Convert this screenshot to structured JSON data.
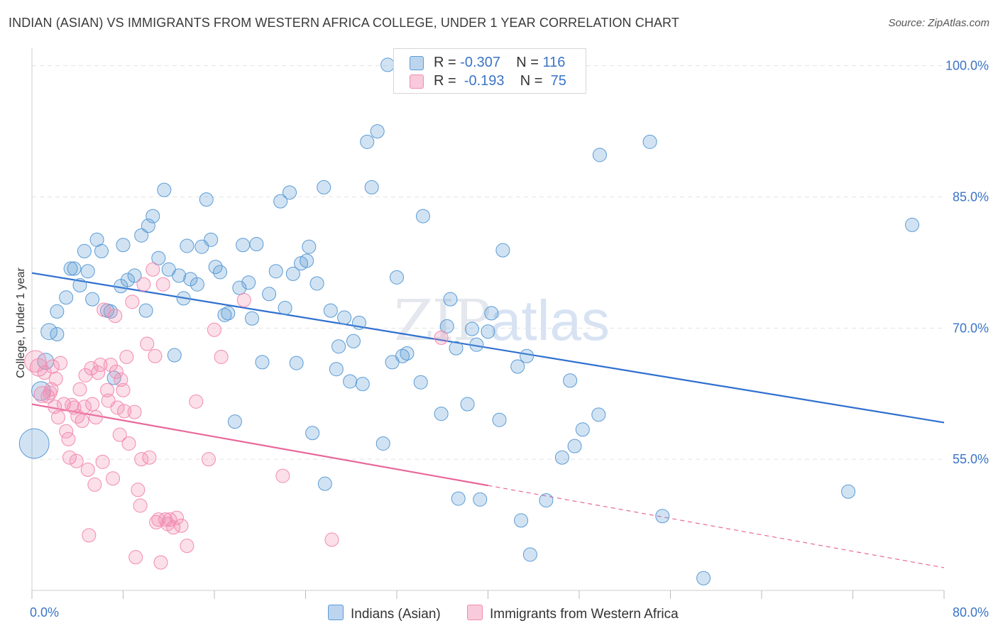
{
  "header": {
    "title": "INDIAN (ASIAN) VS IMMIGRANTS FROM WESTERN AFRICA COLLEGE, UNDER 1 YEAR CORRELATION CHART",
    "source": "Source: ZipAtlas.com"
  },
  "watermark": {
    "part1": "ZIP",
    "part2": "atlas"
  },
  "colors": {
    "blue": "#5b9bd5",
    "blue_line": "#2f6fcf",
    "pink": "#f28bb0",
    "pink_line": "#e8679a",
    "tick": "#3b74c7"
  },
  "legend": {
    "rows": [
      {
        "r_label": "R =",
        "r_value": "-0.307",
        "n_label": "N =",
        "n_value": "116"
      },
      {
        "r_label": "R =",
        "r_value": "-0.193",
        "n_label": "N =",
        "n_value": "75"
      }
    ]
  },
  "bottom_legend": {
    "series1": "Indians (Asian)",
    "series2": "Immigrants from Western Africa"
  },
  "chart_data": {
    "type": "scatter",
    "title": "INDIAN (ASIAN) VS IMMIGRANTS FROM WESTERN AFRICA COLLEGE, UNDER 1 YEAR CORRELATION CHART",
    "ylabel": "College, Under 1 year",
    "xlabel": "",
    "xlim": [
      0,
      80
    ],
    "ylim": [
      40,
      102
    ],
    "x_tick_labels": [
      {
        "value": 0,
        "label": "0.0%"
      },
      {
        "value": 80,
        "label": "80.0%"
      }
    ],
    "y_tick_labels": [
      {
        "value": 100,
        "label": "100.0%"
      },
      {
        "value": 85,
        "label": "85.0%"
      },
      {
        "value": 70,
        "label": "70.0%"
      },
      {
        "value": 55,
        "label": "55.0%"
      }
    ],
    "y_gridlines": [
      100,
      85,
      70,
      55
    ],
    "grid": true,
    "legend_position": "top-center",
    "series": [
      {
        "name": "Indians (Asian)",
        "color": "#5b9bd5",
        "trend": {
          "x": [
            0,
            80
          ],
          "y": [
            76.3,
            59.2
          ]
        },
        "points": [
          {
            "x": 0.2,
            "y": 56.8,
            "s": 2.2
          },
          {
            "x": 0.8,
            "y": 62.8,
            "s": 1.4
          },
          {
            "x": 1.2,
            "y": 66.2,
            "s": 1.2
          },
          {
            "x": 1.5,
            "y": 69.6,
            "s": 1.2
          },
          {
            "x": 2.2,
            "y": 69.3
          },
          {
            "x": 2.2,
            "y": 71.9
          },
          {
            "x": 3.0,
            "y": 73.5
          },
          {
            "x": 3.4,
            "y": 76.8
          },
          {
            "x": 3.7,
            "y": 76.8
          },
          {
            "x": 4.2,
            "y": 74.9
          },
          {
            "x": 4.6,
            "y": 78.8
          },
          {
            "x": 4.9,
            "y": 76.5
          },
          {
            "x": 5.3,
            "y": 73.3
          },
          {
            "x": 5.7,
            "y": 80.1
          },
          {
            "x": 6.1,
            "y": 78.8
          },
          {
            "x": 6.6,
            "y": 72.0
          },
          {
            "x": 6.9,
            "y": 71.9
          },
          {
            "x": 7.2,
            "y": 64.3
          },
          {
            "x": 7.8,
            "y": 74.8
          },
          {
            "x": 8.0,
            "y": 79.5
          },
          {
            "x": 8.4,
            "y": 75.5
          },
          {
            "x": 9.0,
            "y": 76.0
          },
          {
            "x": 9.6,
            "y": 80.6
          },
          {
            "x": 10.0,
            "y": 72.0
          },
          {
            "x": 10.2,
            "y": 81.7
          },
          {
            "x": 10.6,
            "y": 82.8
          },
          {
            "x": 11.1,
            "y": 78.0
          },
          {
            "x": 11.6,
            "y": 85.8
          },
          {
            "x": 12.0,
            "y": 76.7
          },
          {
            "x": 12.5,
            "y": 66.9
          },
          {
            "x": 12.9,
            "y": 76.0
          },
          {
            "x": 13.3,
            "y": 73.4
          },
          {
            "x": 13.6,
            "y": 79.4
          },
          {
            "x": 13.9,
            "y": 75.6
          },
          {
            "x": 14.5,
            "y": 75.0
          },
          {
            "x": 14.9,
            "y": 79.3
          },
          {
            "x": 15.3,
            "y": 84.7
          },
          {
            "x": 15.7,
            "y": 80.1
          },
          {
            "x": 16.1,
            "y": 77.0
          },
          {
            "x": 16.5,
            "y": 76.4
          },
          {
            "x": 16.9,
            "y": 71.5
          },
          {
            "x": 17.2,
            "y": 71.7
          },
          {
            "x": 17.8,
            "y": 59.3
          },
          {
            "x": 18.2,
            "y": 74.6
          },
          {
            "x": 18.5,
            "y": 79.5
          },
          {
            "x": 19.0,
            "y": 75.2
          },
          {
            "x": 19.3,
            "y": 71.1
          },
          {
            "x": 19.7,
            "y": 79.6
          },
          {
            "x": 20.2,
            "y": 66.1
          },
          {
            "x": 20.8,
            "y": 73.9
          },
          {
            "x": 21.4,
            "y": 76.5
          },
          {
            "x": 21.8,
            "y": 84.5
          },
          {
            "x": 22.2,
            "y": 72.3
          },
          {
            "x": 22.6,
            "y": 85.5
          },
          {
            "x": 22.9,
            "y": 76.2
          },
          {
            "x": 23.2,
            "y": 66.0
          },
          {
            "x": 23.6,
            "y": 77.4
          },
          {
            "x": 24.1,
            "y": 77.7
          },
          {
            "x": 24.3,
            "y": 79.3
          },
          {
            "x": 24.6,
            "y": 58.0
          },
          {
            "x": 25.0,
            "y": 75.1
          },
          {
            "x": 25.6,
            "y": 86.1
          },
          {
            "x": 25.7,
            "y": 52.2
          },
          {
            "x": 26.2,
            "y": 72.0
          },
          {
            "x": 26.7,
            "y": 65.3
          },
          {
            "x": 26.9,
            "y": 67.9
          },
          {
            "x": 27.4,
            "y": 71.2
          },
          {
            "x": 27.9,
            "y": 63.9
          },
          {
            "x": 28.2,
            "y": 68.5
          },
          {
            "x": 28.7,
            "y": 70.6
          },
          {
            "x": 29.0,
            "y": 63.6
          },
          {
            "x": 29.4,
            "y": 91.3
          },
          {
            "x": 29.8,
            "y": 86.1
          },
          {
            "x": 30.3,
            "y": 92.5
          },
          {
            "x": 30.8,
            "y": 56.8
          },
          {
            "x": 31.2,
            "y": 100.1
          },
          {
            "x": 31.6,
            "y": 66.1
          },
          {
            "x": 32.0,
            "y": 75.8
          },
          {
            "x": 32.5,
            "y": 66.8
          },
          {
            "x": 32.9,
            "y": 67.1
          },
          {
            "x": 34.1,
            "y": 63.8
          },
          {
            "x": 34.3,
            "y": 82.8
          },
          {
            "x": 35.9,
            "y": 60.2
          },
          {
            "x": 36.4,
            "y": 70.2
          },
          {
            "x": 36.7,
            "y": 73.3
          },
          {
            "x": 37.2,
            "y": 67.7
          },
          {
            "x": 37.4,
            "y": 50.5
          },
          {
            "x": 38.2,
            "y": 61.3
          },
          {
            "x": 38.6,
            "y": 69.9
          },
          {
            "x": 39.0,
            "y": 68.1
          },
          {
            "x": 39.3,
            "y": 50.4
          },
          {
            "x": 40.0,
            "y": 69.6
          },
          {
            "x": 40.3,
            "y": 71.7
          },
          {
            "x": 41.0,
            "y": 59.5
          },
          {
            "x": 41.3,
            "y": 78.9
          },
          {
            "x": 42.9,
            "y": 48.0
          },
          {
            "x": 42.6,
            "y": 65.6
          },
          {
            "x": 43.4,
            "y": 66.8
          },
          {
            "x": 43.7,
            "y": 44.1
          },
          {
            "x": 45.1,
            "y": 50.3
          },
          {
            "x": 46.5,
            "y": 55.2
          },
          {
            "x": 47.2,
            "y": 64.0
          },
          {
            "x": 47.6,
            "y": 56.5
          },
          {
            "x": 48.3,
            "y": 58.4
          },
          {
            "x": 49.7,
            "y": 60.1
          },
          {
            "x": 49.8,
            "y": 89.8
          },
          {
            "x": 54.2,
            "y": 91.3
          },
          {
            "x": 55.3,
            "y": 48.5
          },
          {
            "x": 58.9,
            "y": 41.4
          },
          {
            "x": 71.6,
            "y": 51.3
          },
          {
            "x": 77.2,
            "y": 81.8
          }
        ]
      },
      {
        "name": "Immigrants from Western Africa",
        "color": "#f28bb0",
        "trend": {
          "x": [
            0,
            40
          ],
          "y": [
            61.3,
            52.0
          ],
          "dash_to": {
            "x": 80,
            "y": 42.6
          }
        },
        "points": [
          {
            "x": 0.3,
            "y": 66.2,
            "s": 1.6
          },
          {
            "x": 0.6,
            "y": 65.5,
            "s": 1.3
          },
          {
            "x": 0.9,
            "y": 62.4,
            "s": 1.2
          },
          {
            "x": 1.1,
            "y": 64.9
          },
          {
            "x": 1.4,
            "y": 62.2
          },
          {
            "x": 1.6,
            "y": 62.6
          },
          {
            "x": 1.7,
            "y": 63.0
          },
          {
            "x": 1.8,
            "y": 65.6
          },
          {
            "x": 2.0,
            "y": 61.0
          },
          {
            "x": 2.1,
            "y": 64.2
          },
          {
            "x": 2.3,
            "y": 59.8
          },
          {
            "x": 2.5,
            "y": 66.0
          },
          {
            "x": 2.8,
            "y": 61.3
          },
          {
            "x": 3.0,
            "y": 58.2
          },
          {
            "x": 3.2,
            "y": 57.3
          },
          {
            "x": 3.3,
            "y": 55.2
          },
          {
            "x": 3.5,
            "y": 61.2
          },
          {
            "x": 3.7,
            "y": 60.9
          },
          {
            "x": 3.9,
            "y": 54.8
          },
          {
            "x": 4.0,
            "y": 59.9
          },
          {
            "x": 4.2,
            "y": 63.0
          },
          {
            "x": 4.4,
            "y": 59.4
          },
          {
            "x": 4.6,
            "y": 61.0
          },
          {
            "x": 4.7,
            "y": 64.6
          },
          {
            "x": 4.9,
            "y": 53.8
          },
          {
            "x": 5.0,
            "y": 46.3
          },
          {
            "x": 5.2,
            "y": 65.4
          },
          {
            "x": 5.3,
            "y": 61.3
          },
          {
            "x": 5.5,
            "y": 52.1
          },
          {
            "x": 5.6,
            "y": 59.8
          },
          {
            "x": 5.8,
            "y": 64.9
          },
          {
            "x": 6.0,
            "y": 65.8
          },
          {
            "x": 6.2,
            "y": 54.7
          },
          {
            "x": 6.3,
            "y": 72.1
          },
          {
            "x": 6.6,
            "y": 62.9
          },
          {
            "x": 6.7,
            "y": 61.7
          },
          {
            "x": 6.9,
            "y": 65.8
          },
          {
            "x": 7.1,
            "y": 52.8
          },
          {
            "x": 7.3,
            "y": 71.4
          },
          {
            "x": 7.4,
            "y": 65.0
          },
          {
            "x": 7.5,
            "y": 60.9
          },
          {
            "x": 7.7,
            "y": 57.8
          },
          {
            "x": 7.8,
            "y": 64.1
          },
          {
            "x": 8.0,
            "y": 62.9
          },
          {
            "x": 8.1,
            "y": 60.5
          },
          {
            "x": 8.3,
            "y": 66.7
          },
          {
            "x": 8.5,
            "y": 56.8
          },
          {
            "x": 8.8,
            "y": 73.0
          },
          {
            "x": 9.0,
            "y": 60.4
          },
          {
            "x": 9.1,
            "y": 43.8
          },
          {
            "x": 9.3,
            "y": 51.5
          },
          {
            "x": 9.5,
            "y": 49.7
          },
          {
            "x": 9.6,
            "y": 55.0
          },
          {
            "x": 9.8,
            "y": 75.0
          },
          {
            "x": 10.1,
            "y": 68.2
          },
          {
            "x": 10.3,
            "y": 55.2
          },
          {
            "x": 10.6,
            "y": 76.7
          },
          {
            "x": 10.8,
            "y": 66.8
          },
          {
            "x": 10.9,
            "y": 47.8
          },
          {
            "x": 11.1,
            "y": 48.1
          },
          {
            "x": 11.3,
            "y": 43.2
          },
          {
            "x": 11.5,
            "y": 75.0
          },
          {
            "x": 11.7,
            "y": 48.1
          },
          {
            "x": 11.9,
            "y": 47.6
          },
          {
            "x": 12.1,
            "y": 48.1
          },
          {
            "x": 12.4,
            "y": 47.2
          },
          {
            "x": 12.7,
            "y": 48.3
          },
          {
            "x": 13.1,
            "y": 47.4
          },
          {
            "x": 13.6,
            "y": 45.1
          },
          {
            "x": 14.4,
            "y": 61.6
          },
          {
            "x": 15.5,
            "y": 55.0
          },
          {
            "x": 16.0,
            "y": 69.8
          },
          {
            "x": 16.6,
            "y": 66.7
          },
          {
            "x": 18.6,
            "y": 73.2
          },
          {
            "x": 22.0,
            "y": 53.1
          },
          {
            "x": 26.3,
            "y": 45.8
          },
          {
            "x": 35.9,
            "y": 68.9
          }
        ]
      }
    ]
  }
}
